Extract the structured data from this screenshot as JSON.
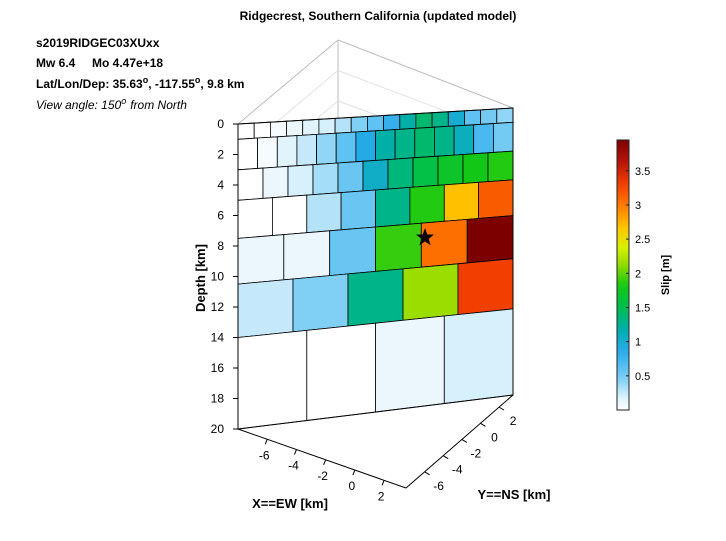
{
  "chart_data": {
    "type": "heatmap",
    "title": "Ridgecrest, Southern California (updated model)",
    "annotations": {
      "event_id": "s2019RIDGEC03XUxx",
      "mw": "Mw 6.4",
      "mo": "Mo 4.47e+18",
      "latlon_prefix": "Lat/Lon/Dep: 35.63",
      "lon_part": ", -117.55",
      "dep_part": ", 9.8 km",
      "deg": "o",
      "view_prefix": "View angle: 150",
      "view_suffix": "from North"
    },
    "axes": {
      "depth_label": "Depth [km]",
      "ew_label": "X==EW [km]",
      "ns_label": "Y==NS  [km]",
      "depth_ticks": [
        "0",
        "2",
        "4",
        "6",
        "8",
        "10",
        "12",
        "14",
        "16",
        "18",
        "20"
      ],
      "ew_ticks": [
        "-6",
        "-4",
        "-2",
        "0",
        "2"
      ],
      "ns_ticks": [
        "2",
        "0",
        "-2",
        "-4",
        "-6"
      ],
      "depth_range": [
        0,
        20
      ]
    },
    "colorbar": {
      "label": "Slip [m]",
      "ticks": [
        "0.5",
        "1",
        "1.5",
        "2",
        "2.5",
        "3",
        "3.5"
      ],
      "tick_values": [
        0.5,
        1,
        1.5,
        2,
        2.5,
        3,
        3.5
      ],
      "range": [
        0,
        3.95
      ]
    },
    "slip_rows": [
      {
        "depth_top": 0,
        "depth_bottom": 1,
        "slip": [
          0.0,
          0.0,
          0.05,
          0.1,
          0.15,
          0.2,
          0.3,
          0.45,
          0.6,
          0.8,
          1.2,
          1.4,
          1.3,
          1.0,
          0.6,
          0.5,
          0.4
        ]
      },
      {
        "depth_top": 1,
        "depth_bottom": 3,
        "slip": [
          0.0,
          0.05,
          0.15,
          0.25,
          0.4,
          0.6,
          0.9,
          1.2,
          1.3,
          1.4,
          1.3,
          1.1,
          0.7,
          0.5
        ]
      },
      {
        "depth_top": 3,
        "depth_bottom": 5,
        "slip": [
          0.0,
          0.1,
          0.2,
          0.35,
          0.55,
          1.05,
          1.35,
          1.55,
          1.7,
          1.8,
          1.85
        ]
      },
      {
        "depth_top": 5,
        "depth_bottom": 7.5,
        "slip": [
          0.0,
          0.0,
          0.3,
          0.55,
          1.3,
          1.85,
          2.7,
          3.15
        ]
      },
      {
        "depth_top": 7.5,
        "depth_bottom": 10.5,
        "slip": [
          0.1,
          0.1,
          0.55,
          1.9,
          3.05,
          3.95
        ]
      },
      {
        "depth_top": 10.5,
        "depth_bottom": 14,
        "slip": [
          0.25,
          0.45,
          1.3,
          2.15,
          3.3
        ]
      },
      {
        "depth_top": 14,
        "depth_bottom": 20,
        "slip": [
          0.0,
          0.0,
          0.1,
          0.2
        ]
      }
    ],
    "hypocenter_depth_km": 9.8,
    "grid": true,
    "legend_placement": "right"
  }
}
